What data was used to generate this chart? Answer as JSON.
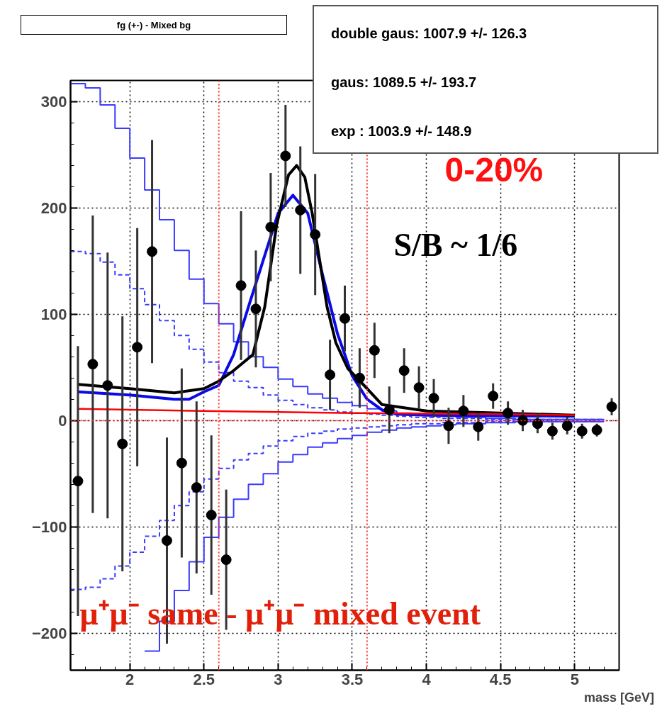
{
  "chart_data": {
    "type": "scatter",
    "title": "fg (+-) - Mixed bg",
    "xlabel": "mass [GeV]",
    "xlim": [
      1.6,
      5.3
    ],
    "ylim": [
      -235,
      320
    ],
    "xticks": [
      2,
      2.5,
      3,
      3.5,
      4,
      4.5,
      5
    ],
    "yticks": [
      -200,
      -100,
      0,
      100,
      200,
      300
    ],
    "grid": true,
    "annotations": [
      "double gaus: 1007.9 +/- 126.3",
      "gaus: 1089.5 +/- 193.7",
      "exp : 1003.9 +/- 148.9",
      "0-20%",
      "S/B ~ 1/6",
      "μ⁺μ⁻ same - μ⁺μ⁻ mixed event"
    ],
    "ref_lines": [
      {
        "axis": "x",
        "value": 2.6,
        "label": null,
        "color": "#ff3030",
        "line_style": "dotted"
      },
      {
        "axis": "x",
        "value": 3.6,
        "label": null,
        "color": "#ff3030",
        "line_style": "dotted"
      },
      {
        "axis": "y",
        "value": 0,
        "label": null,
        "color": "#ff3030",
        "line_style": "dotted"
      }
    ],
    "series": [
      {
        "type": "step",
        "color": "#3b3bff",
        "line_style": "solid",
        "x": [
          1.6,
          1.7,
          1.8,
          1.9,
          2.0,
          2.1,
          2.2,
          2.3,
          2.4,
          2.5,
          2.6,
          2.7,
          2.8,
          2.9,
          3.0,
          3.1,
          3.2,
          3.3,
          3.4,
          3.5,
          3.6,
          3.7,
          3.8,
          3.9,
          4.0,
          4.1,
          4.2,
          4.3,
          4.4,
          4.5,
          4.6,
          4.7,
          4.8,
          4.9,
          5.0,
          5.1,
          5.2
        ],
        "values": [
          317,
          313,
          297,
          275,
          247,
          217,
          189,
          160,
          133,
          110,
          91,
          74,
          60,
          50,
          39,
          32,
          25,
          21,
          17,
          14,
          11,
          9,
          7,
          6,
          5,
          4,
          3,
          3,
          2,
          2,
          1,
          1,
          1,
          1,
          1,
          1,
          1
        ]
      },
      {
        "type": "step",
        "color": "#3b3bff",
        "line_style": "solid",
        "x": [
          2.1,
          2.2,
          2.3,
          2.4,
          2.5,
          2.6,
          2.7,
          2.8,
          2.9,
          3.0,
          3.1,
          3.2,
          3.3,
          3.4,
          3.5,
          3.6,
          3.7,
          3.8,
          3.9,
          4.0,
          4.1,
          4.2,
          4.3,
          4.4,
          4.5,
          4.6,
          4.7,
          4.8,
          4.9,
          5.0,
          5.1,
          5.2
        ],
        "values": [
          -217,
          -189,
          -160,
          -133,
          -110,
          -91,
          -74,
          -60,
          -50,
          -39,
          -32,
          -25,
          -21,
          -17,
          -14,
          -11,
          -9,
          -7,
          -6,
          -5,
          -4,
          -3,
          -3,
          -2,
          -2,
          -1,
          -1,
          -1,
          -1,
          -1,
          -1,
          -1
        ]
      },
      {
        "type": "step",
        "color": "#3b3bff",
        "line_style": "dashed",
        "x": [
          1.6,
          1.7,
          1.8,
          1.9,
          2.0,
          2.1,
          2.2,
          2.3,
          2.4,
          2.5,
          2.6,
          2.7,
          2.8,
          2.9,
          3.0,
          3.1,
          3.2,
          3.3,
          3.4,
          3.5,
          3.6,
          3.7,
          3.8,
          3.9,
          4.0,
          4.1,
          4.2,
          4.3,
          4.4,
          4.5,
          4.6,
          4.7,
          4.8,
          4.9,
          5.0,
          5.1,
          5.2
        ],
        "values": [
          159,
          157,
          149,
          137,
          124,
          109,
          94,
          80,
          67,
          55,
          45,
          37,
          31,
          24,
          19,
          15,
          12,
          10,
          8,
          7,
          6,
          5,
          4,
          3,
          3,
          2,
          2,
          2,
          1,
          1,
          1,
          1,
          1,
          1,
          1,
          1,
          1
        ]
      },
      {
        "type": "step",
        "color": "#3b3bff",
        "line_style": "dashed",
        "x": [
          1.6,
          1.7,
          1.8,
          1.9,
          2.0,
          2.1,
          2.2,
          2.3,
          2.4,
          2.5,
          2.6,
          2.7,
          2.8,
          2.9,
          3.0,
          3.1,
          3.2,
          3.3,
          3.4,
          3.5,
          3.6,
          3.7,
          3.8,
          3.9,
          4.0,
          4.1,
          4.2,
          4.3,
          4.4,
          4.5,
          4.6,
          4.7,
          4.8,
          4.9,
          5.0,
          5.1,
          5.2
        ],
        "values": [
          -159,
          -157,
          -149,
          -137,
          -124,
          -109,
          -94,
          -80,
          -67,
          -55,
          -45,
          -37,
          -31,
          -24,
          -19,
          -15,
          -12,
          -10,
          -8,
          -7,
          -6,
          -5,
          -4,
          -3,
          -3,
          -2,
          -2,
          -2,
          -1,
          -1,
          -1,
          -1,
          -1,
          -1,
          -1,
          -1,
          -1
        ]
      },
      {
        "type": "line",
        "color": "#0a0ae6",
        "line_style": "solid",
        "x": [
          1.65,
          2.0,
          2.3,
          2.4,
          2.5,
          2.6,
          2.7,
          2.8,
          2.9,
          3.0,
          3.1,
          3.2,
          3.3,
          3.4,
          3.5,
          3.6,
          3.7,
          3.8,
          4.0,
          5.0
        ],
        "values": [
          27,
          24,
          20,
          20,
          27,
          33,
          62,
          107,
          151,
          195,
          212,
          195,
          137,
          82,
          42,
          20,
          10,
          6,
          5,
          4
        ]
      },
      {
        "type": "line",
        "color": "#000000",
        "line_style": "solid",
        "x": [
          1.65,
          2.0,
          2.3,
          2.5,
          2.6,
          2.7,
          2.83,
          2.91,
          2.99,
          3.07,
          3.125,
          3.18,
          3.23,
          3.28,
          3.33,
          3.39,
          3.47,
          3.58,
          3.7,
          4.0,
          4.5,
          5.0
        ],
        "values": [
          34,
          30,
          26,
          30,
          37,
          47,
          62,
          107,
          184,
          231,
          240,
          229,
          195,
          151,
          107,
          73,
          49,
          33,
          15,
          9,
          7,
          5
        ]
      },
      {
        "type": "line",
        "color": "#ff0000",
        "line_style": "solid",
        "x": [
          1.65,
          2.5,
          3.5,
          4.5,
          5.0
        ],
        "values": [
          11,
          9,
          7,
          6,
          5
        ]
      },
      {
        "color": "#000000",
        "marker": "circle",
        "x": [
          1.65,
          1.75,
          1.85,
          1.95,
          2.05,
          2.15,
          2.25,
          2.35,
          2.45,
          2.55,
          2.65,
          2.75,
          2.85,
          2.95,
          3.05,
          3.15,
          3.25,
          3.35,
          3.45,
          3.55,
          3.65,
          3.75,
          3.85,
          3.95,
          4.05,
          4.15,
          4.25,
          4.35,
          4.45,
          4.55,
          4.65,
          4.75,
          4.85,
          4.95,
          5.05,
          5.15,
          5.25
        ],
        "values": [
          -57,
          53,
          33,
          -22,
          69,
          159,
          -113,
          -40,
          -63,
          -89,
          -131,
          127,
          105,
          182,
          249,
          198,
          175,
          43,
          96,
          40,
          66,
          10,
          47,
          31,
          21,
          -5,
          9,
          -6,
          23,
          7,
          0,
          -3,
          -10,
          -5,
          -10,
          -9,
          13
        ],
        "errors": [
          127,
          140,
          125,
          120,
          112,
          105,
          97,
          89,
          81,
          75,
          66,
          70,
          55,
          51,
          48,
          60,
          57,
          33,
          31,
          28,
          26,
          22,
          21,
          20,
          18,
          17,
          15,
          13,
          12,
          11,
          10,
          9,
          8,
          8,
          7,
          6,
          8
        ]
      }
    ]
  }
}
